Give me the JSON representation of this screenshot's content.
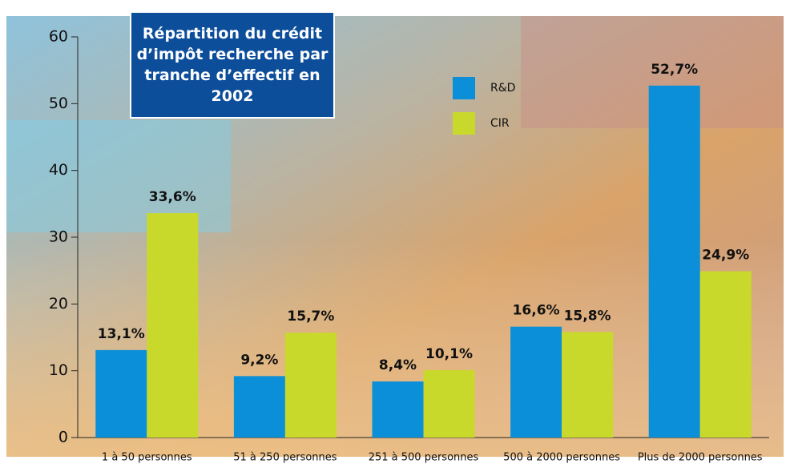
{
  "chart_data": {
    "type": "bar",
    "title": "Répartition du crédit d’impôt recherche par tranche d’effectif en 2002",
    "categories": [
      "1 à 50 personnes",
      "51 à 250 personnes",
      "251 à 500 personnes",
      "500 à 2000 personnes",
      "Plus de 2000 personnes"
    ],
    "series": [
      {
        "name": "R&D",
        "color": "#0a8fd8",
        "values": [
          13.1,
          9.2,
          8.4,
          16.6,
          52.7
        ],
        "value_labels": [
          "13,1%",
          "9,2%",
          "8,4%",
          "16,6%",
          "52,7%"
        ]
      },
      {
        "name": "CIR",
        "color": "#c9d92b",
        "values": [
          33.6,
          15.7,
          10.1,
          15.8,
          24.9
        ],
        "value_labels": [
          "33,6%",
          "15,7%",
          "10,1%",
          "15,8%",
          "24,9%"
        ]
      }
    ],
    "ylim": [
      0,
      60
    ],
    "yticks": [
      0,
      10,
      20,
      30,
      40,
      50,
      60
    ]
  }
}
